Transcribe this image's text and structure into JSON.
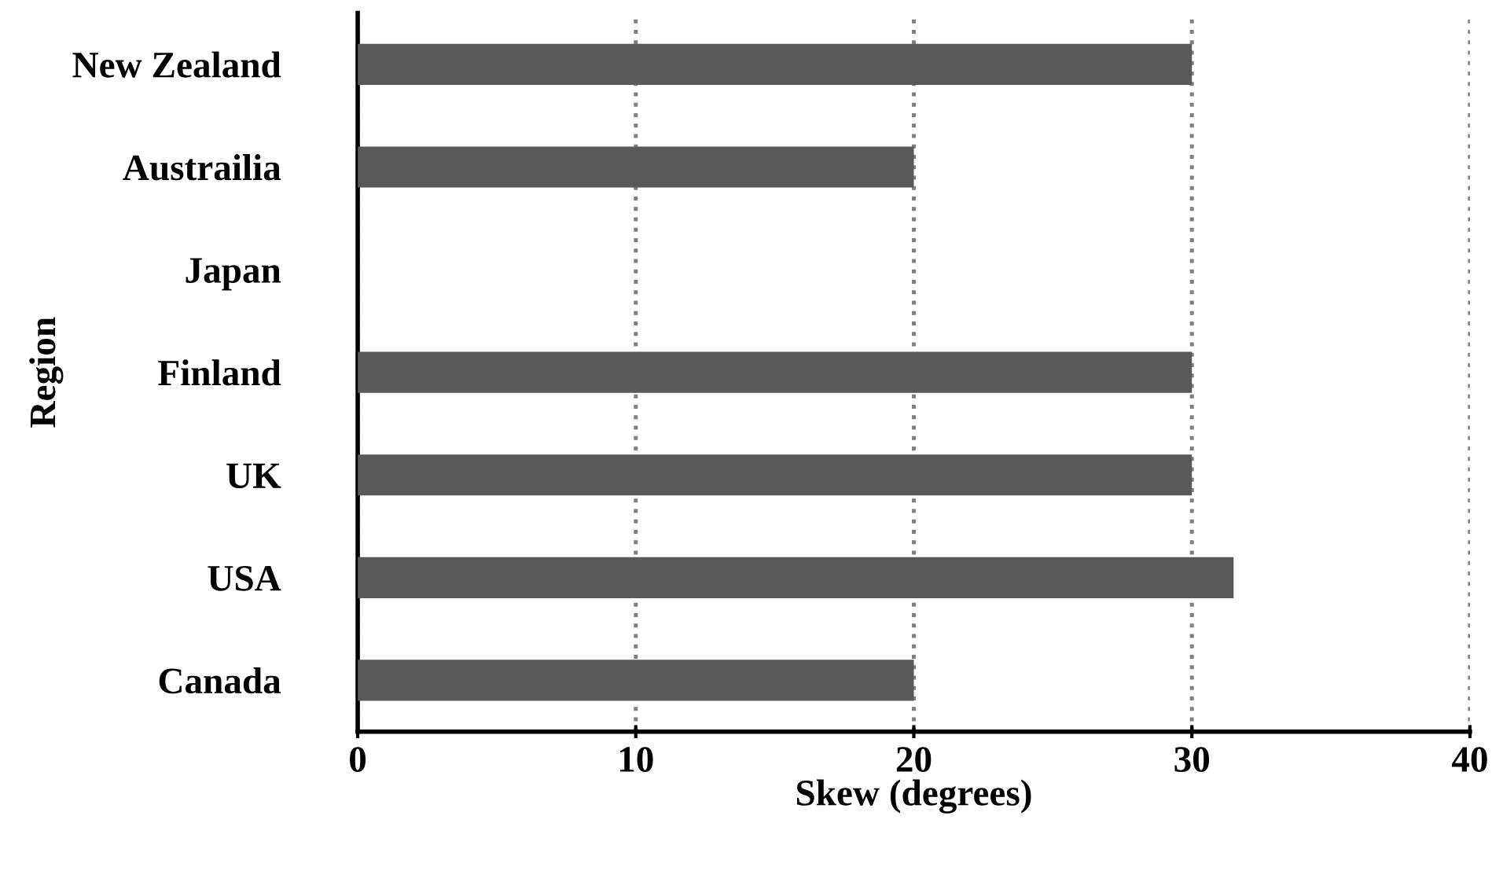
{
  "chart_data": {
    "type": "bar",
    "orientation": "horizontal",
    "xlabel": "Skew (degrees)",
    "ylabel": "Region",
    "categories": [
      "New Zealand",
      "Austrailia",
      "Japan",
      "Finland",
      "UK",
      "USA",
      "Canada"
    ],
    "values": [
      30,
      20,
      0,
      30,
      30,
      31.5,
      20
    ],
    "color": "#595959",
    "xlim": [
      0,
      40
    ],
    "xticks": [
      0,
      10,
      20,
      30,
      40
    ],
    "grid": "x",
    "legend": false
  }
}
